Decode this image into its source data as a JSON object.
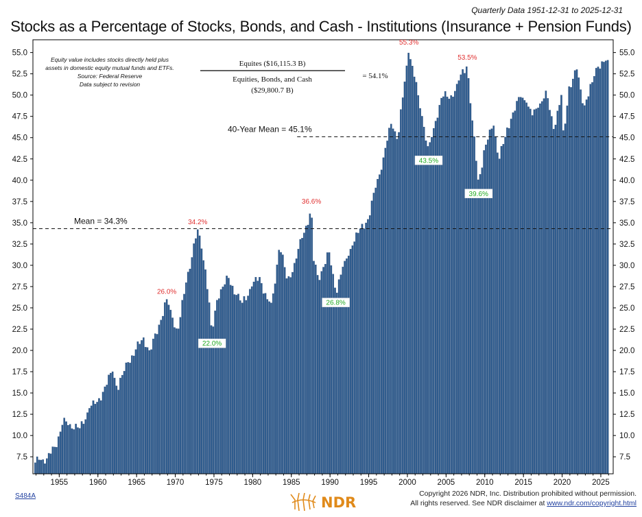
{
  "header": {
    "date_range": "Quarterly Data 1951-12-31 to 2025-12-31",
    "title": "Stocks as a Percentage of Stocks, Bonds, and Cash - Institutions (Insurance + Pension Funds)"
  },
  "notes": {
    "line1": "Equity value includes stocks directly held plus",
    "line2": "assets in domestic equity mutual funds and ETFs.",
    "line3": "Source: Federal Reserve",
    "line4": "Data subject to revision"
  },
  "formula": {
    "numerator": "Equites ($16,115.3 B)",
    "denominator_line1": "Equities, Bonds, and Cash",
    "denominator_line2": "($29,800.7 B)",
    "result": "=  54.1%"
  },
  "footer": {
    "code": "S484A",
    "copyright_line1": "Copyright 2026 NDR, Inc. Distribution prohibited without permission.",
    "copyright_line2_prefix": "All rights reserved. See NDR disclaimer at ",
    "copyright_link": "www.ndr.com/copyright.html",
    "logo_text": "NDR"
  },
  "colors": {
    "bar": "#2f5d8f",
    "bar_edge": "#1f3f6f",
    "high_label": "#e03030",
    "low_label": "#22aa22",
    "axis": "#000000"
  },
  "chart_data": {
    "type": "bar",
    "frequency": "quarterly",
    "x_start": "1951-12-31",
    "x_end": "2025-12-31",
    "ylim": [
      5.5,
      56.5
    ],
    "yticks": [
      7.5,
      10.0,
      12.5,
      15.0,
      17.5,
      20.0,
      22.5,
      25.0,
      27.5,
      30.0,
      32.5,
      35.0,
      37.5,
      40.0,
      42.5,
      45.0,
      47.5,
      50.0,
      52.5,
      55.0
    ],
    "ytick_labels": [
      "7.5",
      "10.0",
      "12.5",
      "15.0",
      "17.5",
      "20.0",
      "22.5",
      "25.0",
      "27.5",
      "30.0",
      "32.5",
      "35.0",
      "37.5",
      "40.0",
      "42.5",
      "45.0",
      "47.5",
      "50.0",
      "52.5",
      "55.0"
    ],
    "xticks": [
      1955,
      1960,
      1965,
      1970,
      1975,
      1980,
      1985,
      1990,
      1995,
      2000,
      2005,
      2010,
      2015,
      2020,
      2025
    ],
    "xtick_labels": [
      "1955",
      "1960",
      "1965",
      "1970",
      "1975",
      "1980",
      "1985",
      "1990",
      "1995",
      "2000",
      "2005",
      "2010",
      "2015",
      "2020",
      "2025"
    ],
    "anchors": [
      [
        1951.9,
        6.8
      ],
      [
        1952.5,
        7.2
      ],
      [
        1953.5,
        7.3
      ],
      [
        1954.5,
        8.8
      ],
      [
        1955.5,
        11.5
      ],
      [
        1956.5,
        11.3
      ],
      [
        1957.75,
        10.8
      ],
      [
        1958.9,
        13.2
      ],
      [
        1960.0,
        14.0
      ],
      [
        1961.9,
        17.5
      ],
      [
        1962.5,
        15.5
      ],
      [
        1963.9,
        18.6
      ],
      [
        1965.9,
        21.5
      ],
      [
        1966.75,
        19.8
      ],
      [
        1967.9,
        23.0
      ],
      [
        1968.9,
        26.0
      ],
      [
        1969.5,
        24.5
      ],
      [
        1970.3,
        22.0
      ],
      [
        1971.5,
        28.5
      ],
      [
        1972.9,
        34.2
      ],
      [
        1973.5,
        31.5
      ],
      [
        1974.0,
        29.0
      ],
      [
        1974.75,
        22.0
      ],
      [
        1975.5,
        26.5
      ],
      [
        1976.9,
        28.5
      ],
      [
        1977.9,
        26.5
      ],
      [
        1978.6,
        25.5
      ],
      [
        1979.9,
        27.5
      ],
      [
        1980.9,
        28.6
      ],
      [
        1981.9,
        26.0
      ],
      [
        1982.5,
        25.5
      ],
      [
        1983.5,
        32.5
      ],
      [
        1984.5,
        28.0
      ],
      [
        1985.5,
        30.5
      ],
      [
        1986.5,
        33.5
      ],
      [
        1987.6,
        36.6
      ],
      [
        1987.9,
        30.5
      ],
      [
        1988.5,
        28.5
      ],
      [
        1989.9,
        31.5
      ],
      [
        1990.75,
        26.8
      ],
      [
        1991.9,
        30.5
      ],
      [
        1993.0,
        32.5
      ],
      [
        1994.0,
        34.5
      ],
      [
        1995.0,
        35.5
      ],
      [
        1996.0,
        39.5
      ],
      [
        1997.0,
        43.0
      ],
      [
        1998.0,
        47.0
      ],
      [
        1998.75,
        44.5
      ],
      [
        1999.5,
        50.5
      ],
      [
        2000.2,
        55.3
      ],
      [
        2000.75,
        53.0
      ],
      [
        2001.5,
        49.5
      ],
      [
        2002.75,
        43.5
      ],
      [
        2003.5,
        46.5
      ],
      [
        2004.5,
        50.0
      ],
      [
        2005.5,
        49.5
      ],
      [
        2006.5,
        51.5
      ],
      [
        2007.75,
        53.5
      ],
      [
        2008.5,
        46.0
      ],
      [
        2009.2,
        39.6
      ],
      [
        2009.9,
        43.5
      ],
      [
        2010.5,
        45.0
      ],
      [
        2011.2,
        46.5
      ],
      [
        2011.75,
        42.5
      ],
      [
        2012.5,
        44.5
      ],
      [
        2013.5,
        47.5
      ],
      [
        2014.5,
        50.0
      ],
      [
        2015.5,
        49.0
      ],
      [
        2016.2,
        47.5
      ],
      [
        2016.9,
        48.5
      ],
      [
        2017.9,
        50.5
      ],
      [
        2018.9,
        46.0
      ],
      [
        2019.9,
        50.0
      ],
      [
        2020.2,
        45.0
      ],
      [
        2020.9,
        51.0
      ],
      [
        2021.9,
        53.0
      ],
      [
        2022.75,
        48.5
      ],
      [
        2023.9,
        51.5
      ],
      [
        2024.5,
        53.5
      ],
      [
        2025.9,
        54.1
      ]
    ],
    "reference_lines": [
      {
        "label": "Mean = 34.3%",
        "value": 34.3
      },
      {
        "label": "40-Year Mean = 45.1%",
        "value": 45.1,
        "from": 1985.75
      }
    ],
    "annotations": [
      {
        "label": "26.0%",
        "x": 1968.9,
        "y": 26.0,
        "kind": "high"
      },
      {
        "label": "34.2%",
        "x": 1972.9,
        "y": 34.2,
        "kind": "high"
      },
      {
        "label": "36.6%",
        "x": 1987.6,
        "y": 36.6,
        "kind": "high"
      },
      {
        "label": "55.3%",
        "x": 2000.2,
        "y": 55.3,
        "kind": "high"
      },
      {
        "label": "53.5%",
        "x": 2007.75,
        "y": 53.5,
        "kind": "high"
      },
      {
        "label": "22.0%",
        "x": 1974.75,
        "y": 22.0,
        "kind": "low"
      },
      {
        "label": "26.8%",
        "x": 1990.75,
        "y": 26.8,
        "kind": "low"
      },
      {
        "label": "43.5%",
        "x": 2002.75,
        "y": 43.5,
        "kind": "low"
      },
      {
        "label": "39.6%",
        "x": 2009.2,
        "y": 39.6,
        "kind": "low"
      }
    ]
  }
}
